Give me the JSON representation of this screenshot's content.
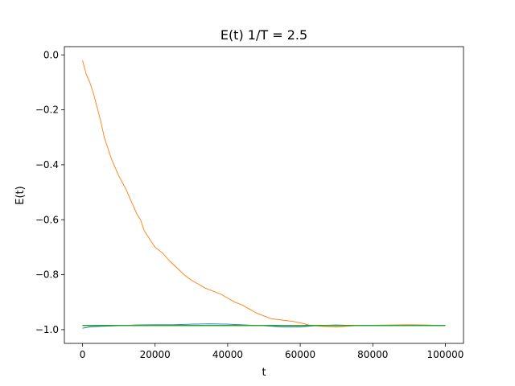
{
  "chart_data": {
    "type": "line",
    "title": "E(t) 1/T = 2.5",
    "xlabel": "t",
    "ylabel": "E(t)",
    "xlim": [
      -5000,
      105000
    ],
    "ylim": [
      -1.05,
      0.03
    ],
    "xticks": [
      0,
      20000,
      40000,
      60000,
      80000,
      100000
    ],
    "xtick_labels": [
      "0",
      "20000",
      "40000",
      "60000",
      "80000",
      "100000"
    ],
    "yticks": [
      0.0,
      -0.2,
      -0.4,
      -0.6,
      -0.8,
      -1.0
    ],
    "ytick_labels": [
      "0.0",
      "−0.2",
      "−0.4",
      "−0.6",
      "−0.8",
      "−1.0"
    ],
    "grid": false,
    "legend": "none",
    "series": [
      {
        "color": "#1f77b4",
        "x": [
          0,
          2000,
          5000,
          10000,
          15000,
          20000,
          25000,
          30000,
          35000,
          40000,
          45000,
          50000,
          55000,
          60000,
          65000,
          70000,
          75000,
          80000,
          85000,
          90000,
          95000,
          100000
        ],
        "y": [
          -0.995,
          -0.99,
          -0.988,
          -0.986,
          -0.983,
          -0.982,
          -0.982,
          -0.98,
          -0.979,
          -0.98,
          -0.983,
          -0.986,
          -0.99,
          -0.99,
          -0.985,
          -0.983,
          -0.985,
          -0.984,
          -0.985,
          -0.983,
          -0.984,
          -0.985
        ]
      },
      {
        "color": "#ff7f0e",
        "x": [
          0,
          1000,
          2000,
          3000,
          4000,
          5000,
          6000,
          7000,
          8000,
          9000,
          10000,
          11000,
          12000,
          13000,
          14000,
          15000,
          16000,
          17000,
          18000,
          19000,
          20000,
          22000,
          24000,
          26000,
          28000,
          30000,
          32000,
          34000,
          36000,
          38000,
          40000,
          42000,
          44000,
          46000,
          48000,
          50000,
          52000,
          55000,
          58000,
          60000,
          63000,
          66000,
          70000,
          75000,
          80000,
          85000,
          90000,
          95000,
          100000
        ],
        "y": [
          -0.02,
          -0.07,
          -0.1,
          -0.14,
          -0.19,
          -0.24,
          -0.3,
          -0.34,
          -0.38,
          -0.41,
          -0.44,
          -0.465,
          -0.49,
          -0.52,
          -0.55,
          -0.58,
          -0.6,
          -0.64,
          -0.66,
          -0.68,
          -0.7,
          -0.72,
          -0.75,
          -0.775,
          -0.8,
          -0.82,
          -0.835,
          -0.85,
          -0.86,
          -0.87,
          -0.885,
          -0.9,
          -0.91,
          -0.925,
          -0.94,
          -0.95,
          -0.96,
          -0.965,
          -0.97,
          -0.975,
          -0.985,
          -0.988,
          -0.99,
          -0.986,
          -0.984,
          -0.983,
          -0.982,
          -0.983,
          -0.986
        ]
      },
      {
        "color": "#2ca02c",
        "x": [
          0,
          100000
        ],
        "y": [
          -0.985,
          -0.985
        ]
      }
    ]
  }
}
